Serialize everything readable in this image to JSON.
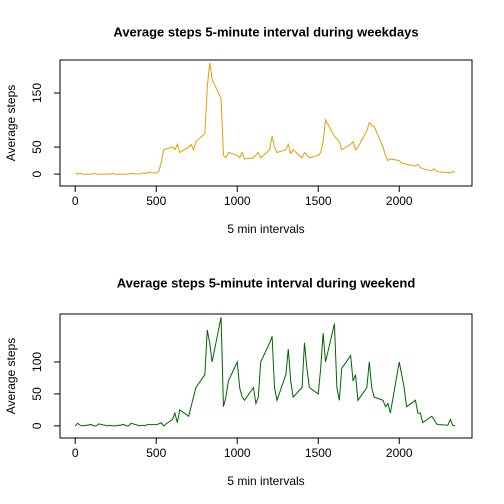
{
  "chart_data": [
    {
      "type": "line",
      "title": "Average steps 5-minute interval during weekdays",
      "xlabel": "5 min intervals",
      "ylabel": "Average steps",
      "x": [
        0,
        15,
        30,
        45,
        100,
        115,
        130,
        145,
        200,
        215,
        230,
        245,
        300,
        315,
        330,
        345,
        400,
        415,
        430,
        445,
        500,
        515,
        530,
        545,
        600,
        615,
        630,
        645,
        700,
        715,
        730,
        745,
        800,
        815,
        830,
        845,
        900,
        915,
        930,
        945,
        1000,
        1015,
        1030,
        1045,
        1100,
        1115,
        1130,
        1145,
        1200,
        1215,
        1230,
        1245,
        1300,
        1315,
        1330,
        1345,
        1400,
        1415,
        1430,
        1445,
        1500,
        1515,
        1530,
        1545,
        1600,
        1615,
        1630,
        1645,
        1700,
        1715,
        1730,
        1745,
        1800,
        1815,
        1830,
        1845,
        1900,
        1915,
        1930,
        1945,
        2000,
        2015,
        2030,
        2045,
        2100,
        2115,
        2130,
        2145,
        2200,
        2215,
        2230,
        2245,
        2300,
        2315,
        2330,
        2345
      ],
      "series": [
        {
          "name": "weekdays",
          "color": "#E69F00",
          "values": [
            2,
            0,
            1,
            0,
            0,
            1,
            0,
            0,
            0,
            0,
            1,
            0,
            0,
            0,
            0,
            1,
            0,
            2,
            1,
            3,
            2,
            5,
            20,
            45,
            50,
            45,
            55,
            40,
            50,
            55,
            45,
            60,
            75,
            160,
            206,
            175,
            140,
            35,
            30,
            40,
            35,
            30,
            40,
            28,
            30,
            35,
            40,
            30,
            45,
            70,
            50,
            40,
            45,
            55,
            38,
            45,
            30,
            40,
            35,
            30,
            35,
            40,
            60,
            100,
            70,
            65,
            60,
            45,
            55,
            60,
            45,
            50,
            80,
            95,
            90,
            88,
            50,
            35,
            25,
            28,
            25,
            20,
            20,
            18,
            15,
            18,
            12,
            10,
            6,
            10,
            5,
            4,
            3,
            2,
            5,
            3
          ]
        }
      ],
      "xlim": [
        -94,
        2449
      ],
      "ylim": [
        -22,
        211
      ],
      "xticks": [
        0,
        500,
        1000,
        1500,
        2000
      ],
      "yticks": [
        0,
        50,
        150
      ]
    },
    {
      "type": "line",
      "title": "Average steps 5-minute interval during weekend",
      "xlabel": "5 min intervals",
      "ylabel": "Average steps",
      "x": [
        0,
        15,
        30,
        45,
        100,
        115,
        130,
        145,
        200,
        215,
        230,
        245,
        300,
        315,
        330,
        345,
        400,
        415,
        430,
        445,
        500,
        515,
        530,
        545,
        600,
        615,
        630,
        645,
        700,
        715,
        730,
        745,
        800,
        815,
        830,
        845,
        900,
        915,
        930,
        945,
        1000,
        1015,
        1030,
        1045,
        1100,
        1115,
        1130,
        1145,
        1200,
        1215,
        1230,
        1245,
        1300,
        1315,
        1330,
        1345,
        1400,
        1415,
        1430,
        1445,
        1500,
        1515,
        1530,
        1545,
        1600,
        1615,
        1630,
        1645,
        1700,
        1715,
        1730,
        1745,
        1800,
        1815,
        1830,
        1845,
        1900,
        1915,
        1930,
        1945,
        2000,
        2015,
        2030,
        2045,
        2100,
        2115,
        2130,
        2145,
        2200,
        2215,
        2230,
        2245,
        2300,
        2315,
        2330,
        2345
      ],
      "series": [
        {
          "name": "weekend",
          "color": "#006400",
          "values": [
            0,
            4,
            1,
            0,
            2,
            0,
            0,
            3,
            0,
            1,
            0,
            0,
            2,
            0,
            0,
            4,
            0,
            1,
            0,
            2,
            2,
            3,
            5,
            0,
            10,
            20,
            5,
            25,
            15,
            30,
            45,
            60,
            80,
            150,
            130,
            100,
            170,
            30,
            45,
            70,
            100,
            60,
            45,
            40,
            60,
            35,
            45,
            100,
            130,
            140,
            60,
            40,
            80,
            120,
            70,
            45,
            60,
            130,
            90,
            60,
            50,
            90,
            145,
            100,
            160,
            60,
            40,
            90,
            110,
            70,
            80,
            40,
            60,
            100,
            60,
            45,
            40,
            30,
            35,
            20,
            100,
            80,
            60,
            30,
            40,
            20,
            20,
            5,
            15,
            10,
            3,
            2,
            1,
            10,
            1,
            0
          ]
        }
      ],
      "xlim": [
        -94,
        2449
      ],
      "ylim": [
        -19,
        175
      ],
      "xticks": [
        0,
        500,
        1000,
        1500,
        2000
      ],
      "yticks": [
        0,
        50,
        100
      ]
    }
  ]
}
